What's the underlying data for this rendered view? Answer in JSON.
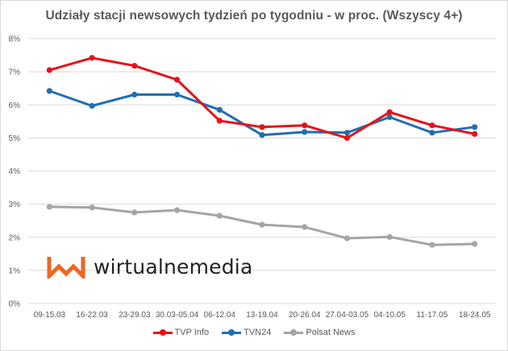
{
  "chart_data": {
    "type": "line",
    "title": "Udziały stacji newsowych tydzień po tygodniu - w proc. (Wszyscy 4+)",
    "xlabel": "",
    "ylabel": "",
    "ylim": [
      0,
      8
    ],
    "yticks": [
      "0%",
      "1%",
      "2%",
      "3%",
      "4%",
      "5%",
      "6%",
      "7%",
      "8%"
    ],
    "grid": true,
    "legend_position": "bottom",
    "categories": [
      "09-15.03",
      "16-22.03",
      "23-29.03",
      "30.03-05.04",
      "06-12.04",
      "13-19.04",
      "20-26.04",
      "27.04-03.05",
      "04-10.05",
      "11-17.05",
      "18-24.05"
    ],
    "series": [
      {
        "name": "TVP Info",
        "color": "#e8111b",
        "values": [
          7.05,
          7.42,
          7.18,
          6.76,
          5.52,
          5.33,
          5.38,
          5.0,
          5.78,
          5.38,
          5.12
        ]
      },
      {
        "name": "TVN24",
        "color": "#1f6fb2",
        "values": [
          6.42,
          5.97,
          6.31,
          6.31,
          5.85,
          5.09,
          5.18,
          5.16,
          5.63,
          5.16,
          5.33
        ]
      },
      {
        "name": "Polsat News",
        "color": "#a5a5a5",
        "values": [
          2.92,
          2.9,
          2.75,
          2.82,
          2.65,
          2.38,
          2.31,
          1.97,
          2.01,
          1.77,
          1.8
        ]
      }
    ]
  },
  "logo": {
    "text": "wirtualnemedia",
    "icon": "wm-logo-icon",
    "color": "#f26522"
  },
  "legend": [
    {
      "label": "TVP Info",
      "color": "#e8111b"
    },
    {
      "label": "TVN24",
      "color": "#1f6fb2"
    },
    {
      "label": "Polsat News",
      "color": "#a5a5a5"
    }
  ]
}
